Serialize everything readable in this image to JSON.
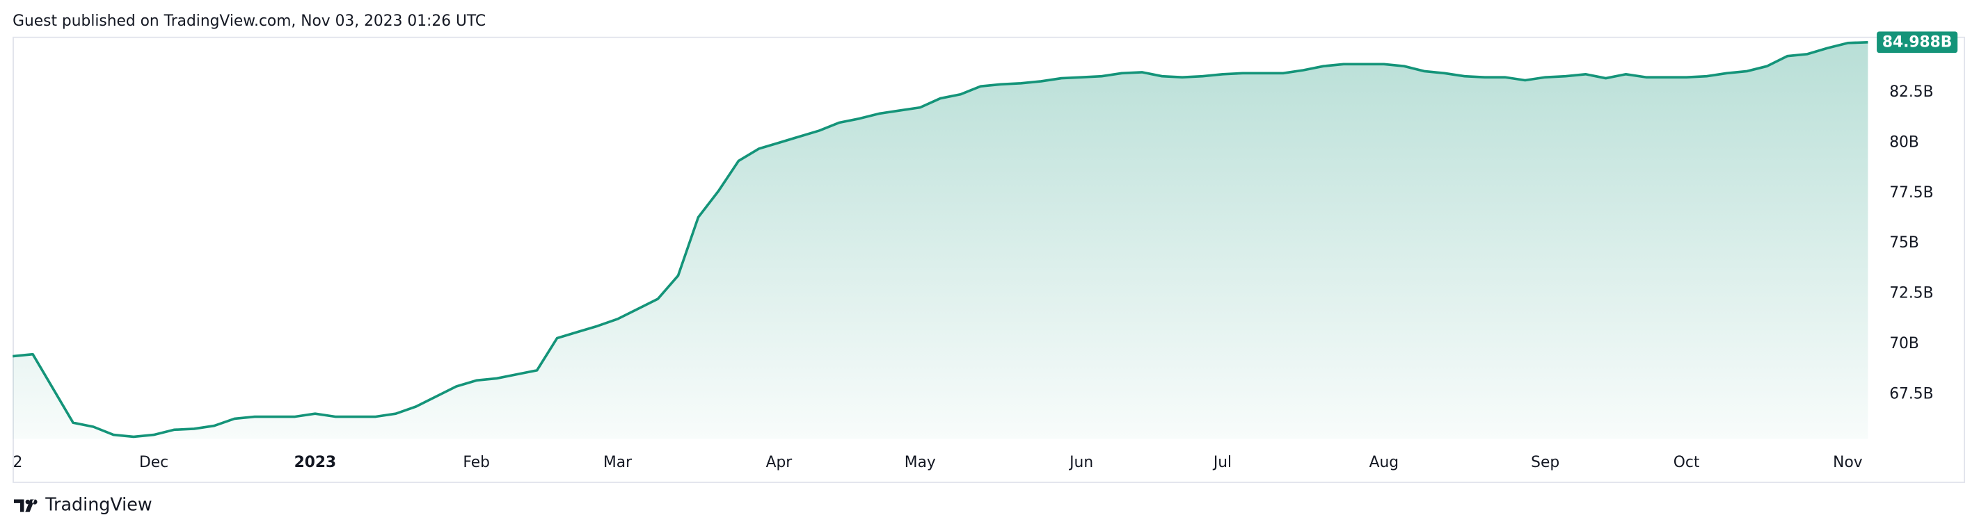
{
  "header": "Guest published on TradingView.com, Nov 03, 2023 01:26 UTC",
  "footer": {
    "brand": "TradingView"
  },
  "chart_data": {
    "type": "area",
    "color": "#149479",
    "categories": [
      "2",
      null,
      null,
      null,
      null,
      null,
      null,
      "Dec",
      null,
      null,
      null,
      null,
      null,
      null,
      null,
      "2023",
      null,
      null,
      null,
      null,
      null,
      null,
      null,
      "Feb",
      null,
      null,
      null,
      null,
      null,
      null,
      "Mar",
      null,
      null,
      null,
      null,
      null,
      null,
      null,
      "Apr",
      null,
      null,
      null,
      null,
      null,
      null,
      "May",
      null,
      null,
      null,
      null,
      null,
      null,
      null,
      "Jun",
      null,
      null,
      null,
      null,
      null,
      null,
      "Jul",
      null,
      null,
      null,
      null,
      null,
      null,
      null,
      "Aug",
      null,
      null,
      null,
      null,
      null,
      null,
      null,
      "Sep",
      null,
      null,
      null,
      null,
      null,
      null,
      "Oct",
      null,
      null,
      null,
      null,
      null,
      null,
      null,
      "Nov",
      null
    ],
    "values": [
      69.4,
      69.5,
      67.8,
      66.1,
      65.9,
      65.5,
      65.4,
      65.5,
      65.75,
      65.8,
      65.95,
      66.3,
      66.4,
      66.4,
      66.4,
      66.55,
      66.4,
      66.4,
      66.4,
      66.55,
      66.9,
      67.4,
      67.9,
      68.2,
      68.3,
      68.5,
      68.7,
      70.3,
      70.6,
      70.9,
      71.25,
      71.75,
      72.25,
      73.4,
      76.3,
      77.6,
      79.1,
      79.7,
      80.0,
      80.3,
      80.6,
      81.0,
      81.2,
      81.45,
      81.6,
      81.75,
      82.2,
      82.4,
      82.8,
      82.9,
      82.95,
      83.05,
      83.2,
      83.25,
      83.3,
      83.45,
      83.5,
      83.3,
      83.25,
      83.3,
      83.4,
      83.45,
      83.45,
      83.45,
      83.6,
      83.8,
      83.9,
      83.9,
      83.9,
      83.8,
      83.55,
      83.45,
      83.3,
      83.25,
      83.25,
      83.1,
      83.25,
      83.3,
      83.4,
      83.2,
      83.4,
      83.25,
      83.25,
      83.25,
      83.3,
      83.45,
      83.55,
      83.8,
      84.3,
      84.4,
      84.7,
      84.95,
      84.988
    ],
    "value_labels": [
      null,
      null,
      null,
      null,
      null,
      null,
      null,
      null,
      null,
      null,
      null,
      null,
      null,
      null,
      null,
      null,
      null,
      null,
      null,
      null,
      null,
      null,
      null,
      null,
      null,
      null,
      null,
      null,
      null,
      null,
      null,
      null,
      null,
      null,
      null,
      null,
      null,
      null,
      null,
      null,
      null,
      null,
      null,
      null,
      null,
      null,
      null,
      null,
      null,
      null,
      null,
      null,
      null,
      null,
      null,
      null,
      null,
      null,
      null,
      null,
      null,
      null,
      null,
      null,
      null,
      null,
      null,
      null,
      null,
      null,
      null,
      null,
      null,
      null,
      null,
      null,
      null,
      null,
      null,
      null,
      null,
      null,
      null,
      null,
      null,
      null,
      null,
      null,
      null,
      null,
      null,
      null,
      "84.988B"
    ],
    "ylim": [
      65.3,
      85.2
    ],
    "yticks": [
      {
        "value": 67.5,
        "label": "67.5B"
      },
      {
        "value": 70,
        "label": "70B"
      },
      {
        "value": 72.5,
        "label": "72.5B"
      },
      {
        "value": 75,
        "label": "75B"
      },
      {
        "value": 77.5,
        "label": "77.5B"
      },
      {
        "value": 80,
        "label": "80B"
      },
      {
        "value": 82.5,
        "label": "82.5B"
      }
    ]
  }
}
